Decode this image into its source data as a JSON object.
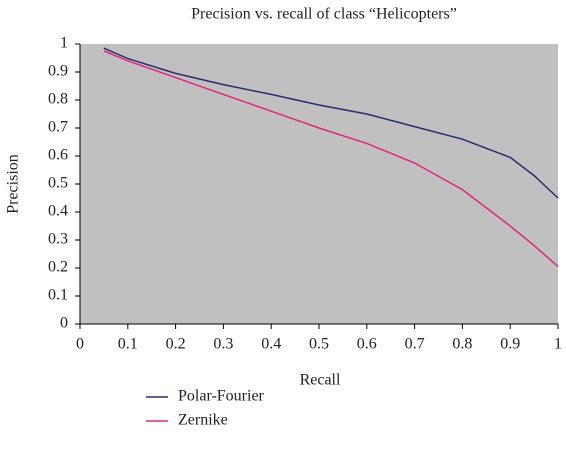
{
  "chart_data": {
    "type": "line",
    "title": "Precision vs. recall of class “Helicopters”",
    "x_label": "Recall",
    "y_label": "Precision",
    "x": [
      0.05,
      0.1,
      0.2,
      0.3,
      0.4,
      0.5,
      0.6,
      0.7,
      0.8,
      0.9,
      0.95,
      1
    ],
    "series": [
      {
        "name": "Polar-Fourier",
        "color": "#2b2d6e",
        "values": [
          0.985,
          0.948,
          0.895,
          0.855,
          0.82,
          0.782,
          0.75,
          0.705,
          0.66,
          0.595,
          0.53,
          0.45
        ]
      },
      {
        "name": "Zernike",
        "color": "#e0287a",
        "values": [
          0.975,
          0.94,
          0.88,
          0.82,
          0.76,
          0.7,
          0.645,
          0.575,
          0.48,
          0.35,
          0.28,
          0.205
        ]
      }
    ],
    "xlim": [
      0,
      1
    ],
    "xticks": [
      0,
      0.1,
      0.2,
      0.3,
      0.4,
      0.5,
      0.6,
      0.7,
      0.8,
      0.9,
      1
    ],
    "ylim": [
      0,
      1
    ],
    "yticks": [
      0,
      0.1,
      0.2,
      0.3,
      0.4,
      0.5,
      0.6,
      0.7,
      0.8,
      0.9,
      1
    ],
    "plot_background": "#c0c0c0",
    "grid": false
  }
}
